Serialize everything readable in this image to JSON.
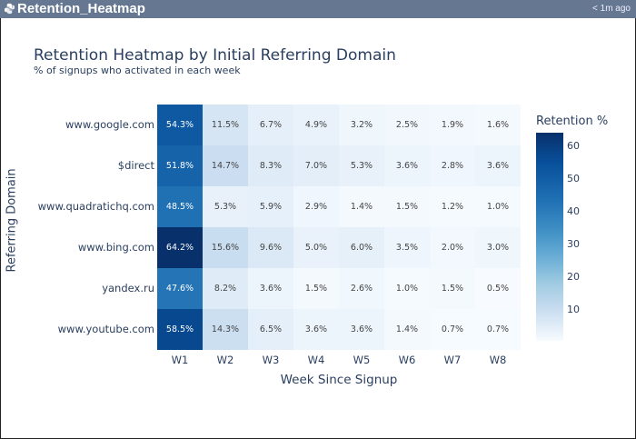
{
  "window": {
    "title": "Retention_Heatmap",
    "timestamp": "< 1m ago",
    "icon": "python-icon",
    "titlebar_color": "#667791"
  },
  "chart_data": {
    "type": "heatmap",
    "title": "Retention Heatmap by Initial Referring Domain",
    "subtitle": "% of signups who activated in each week",
    "xlabel": "Week Since Signup",
    "ylabel": "Referring Domain",
    "x": [
      "W1",
      "W2",
      "W3",
      "W4",
      "W5",
      "W6",
      "W7",
      "W8"
    ],
    "y": [
      "www.google.com",
      "$direct",
      "www.quadratichq.com",
      "www.bing.com",
      "yandex.ru",
      "www.youtube.com"
    ],
    "z": [
      [
        54.3,
        11.5,
        6.7,
        4.9,
        3.2,
        2.5,
        1.9,
        1.6
      ],
      [
        51.8,
        14.7,
        8.3,
        7.0,
        5.3,
        3.6,
        2.8,
        3.6
      ],
      [
        48.5,
        5.3,
        5.9,
        2.9,
        1.4,
        1.5,
        1.2,
        1.0
      ],
      [
        64.2,
        15.6,
        9.6,
        5.0,
        6.0,
        3.5,
        2.0,
        3.0
      ],
      [
        47.6,
        8.2,
        3.6,
        1.5,
        2.6,
        1.0,
        1.5,
        0.5
      ],
      [
        58.5,
        14.3,
        6.5,
        3.6,
        3.6,
        1.4,
        0.7,
        0.7
      ]
    ],
    "text_format": "{v}%",
    "colorscale": "Blues",
    "colorbar": {
      "title": "Retention %",
      "ticks": [
        60,
        50,
        40,
        30,
        20,
        10
      ],
      "range": [
        0.5,
        64.2
      ]
    }
  }
}
